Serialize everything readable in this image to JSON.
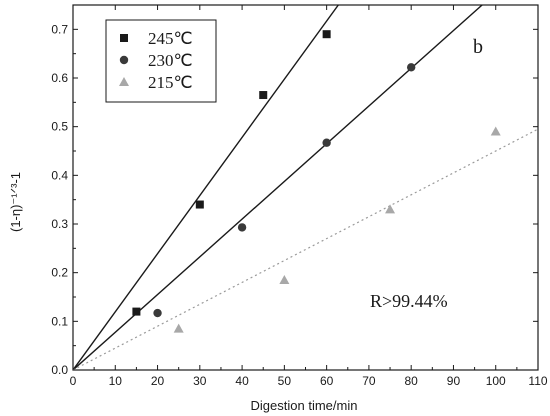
{
  "chart_data": {
    "type": "scatter",
    "xlabel": "Digestion time/min",
    "ylabel": "(1-η)⁻¹ᐟ³-1",
    "xlim": [
      0,
      110
    ],
    "ylim": [
      0,
      0.75
    ],
    "x_ticks": [
      "0",
      "10",
      "20",
      "30",
      "40",
      "50",
      "60",
      "70",
      "80",
      "90",
      "100",
      "110"
    ],
    "y_ticks": [
      "0.0",
      "0.1",
      "0.2",
      "0.3",
      "0.4",
      "0.5",
      "0.6",
      "0.7"
    ],
    "grid": false,
    "legend_position": "top-left",
    "panel_label": "b",
    "annotation": "R>99.44%",
    "series": [
      {
        "name": "245℃",
        "marker": "square",
        "color": "#1a1a1a",
        "line_style": "solid",
        "line_color": "#1a1a1a",
        "fit_slope": 0.01195,
        "x": [
          15,
          30,
          45,
          60
        ],
        "y": [
          0.12,
          0.34,
          0.565,
          0.69
        ]
      },
      {
        "name": "230℃",
        "marker": "circle",
        "color": "#3a3a3a",
        "line_style": "solid",
        "line_color": "#1a1a1a",
        "fit_slope": 0.00775,
        "x": [
          20,
          40,
          60,
          80
        ],
        "y": [
          0.117,
          0.293,
          0.467,
          0.622
        ]
      },
      {
        "name": "215℃",
        "marker": "triangle",
        "color": "#a8a8a8",
        "line_style": "dotted",
        "line_color": "#9a9a9a",
        "fit_slope": 0.0045,
        "x": [
          25,
          50,
          75,
          100
        ],
        "y": [
          0.085,
          0.185,
          0.33,
          0.49
        ]
      }
    ]
  }
}
